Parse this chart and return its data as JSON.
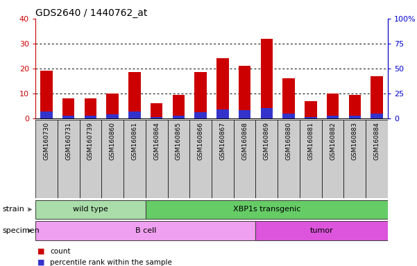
{
  "title": "GDS2640 / 1440762_at",
  "samples": [
    "GSM160730",
    "GSM160731",
    "GSM160739",
    "GSM160860",
    "GSM160861",
    "GSM160864",
    "GSM160865",
    "GSM160866",
    "GSM160867",
    "GSM160868",
    "GSM160869",
    "GSM160880",
    "GSM160881",
    "GSM160882",
    "GSM160883",
    "GSM160884"
  ],
  "count_values": [
    19,
    8,
    8,
    10,
    18.5,
    6,
    9.5,
    18.5,
    24,
    21,
    32,
    16,
    7,
    10,
    9.5,
    17
  ],
  "percentile_values": [
    7,
    2.5,
    2.5,
    4,
    7,
    1.5,
    2.5,
    6,
    9,
    8,
    10,
    5,
    1.5,
    2.5,
    2.5,
    4.5
  ],
  "bar_color_count": "#cc0000",
  "bar_color_percentile": "#3333cc",
  "ylim_left": [
    0,
    40
  ],
  "ylim_right": [
    0,
    100
  ],
  "yticks_left": [
    0,
    10,
    20,
    30,
    40
  ],
  "yticks_right": [
    0,
    25,
    50,
    75,
    100
  ],
  "ytick_labels_right": [
    "0",
    "25",
    "50",
    "75",
    "100%"
  ],
  "grid_lines": [
    10,
    20,
    30
  ],
  "strain_groups": [
    {
      "label": "wild type",
      "start": 0,
      "end": 4,
      "color": "#aaddaa"
    },
    {
      "label": "XBP1s transgenic",
      "start": 5,
      "end": 15,
      "color": "#66cc66"
    }
  ],
  "specimen_groups": [
    {
      "label": "B cell",
      "start": 0,
      "end": 9,
      "color": "#f0a0f0"
    },
    {
      "label": "tumor",
      "start": 10,
      "end": 15,
      "color": "#dd55dd"
    }
  ],
  "strain_label": "strain",
  "specimen_label": "specimen",
  "legend_count_label": "count",
  "legend_percentile_label": "percentile rank within the sample",
  "bg_color": "#ffffff",
  "axis_area_color": "#ffffff",
  "tick_bg_color": "#cccccc",
  "left_tick_color": "#cc0000",
  "right_tick_color": "#0000cc",
  "bar_width": 0.55
}
